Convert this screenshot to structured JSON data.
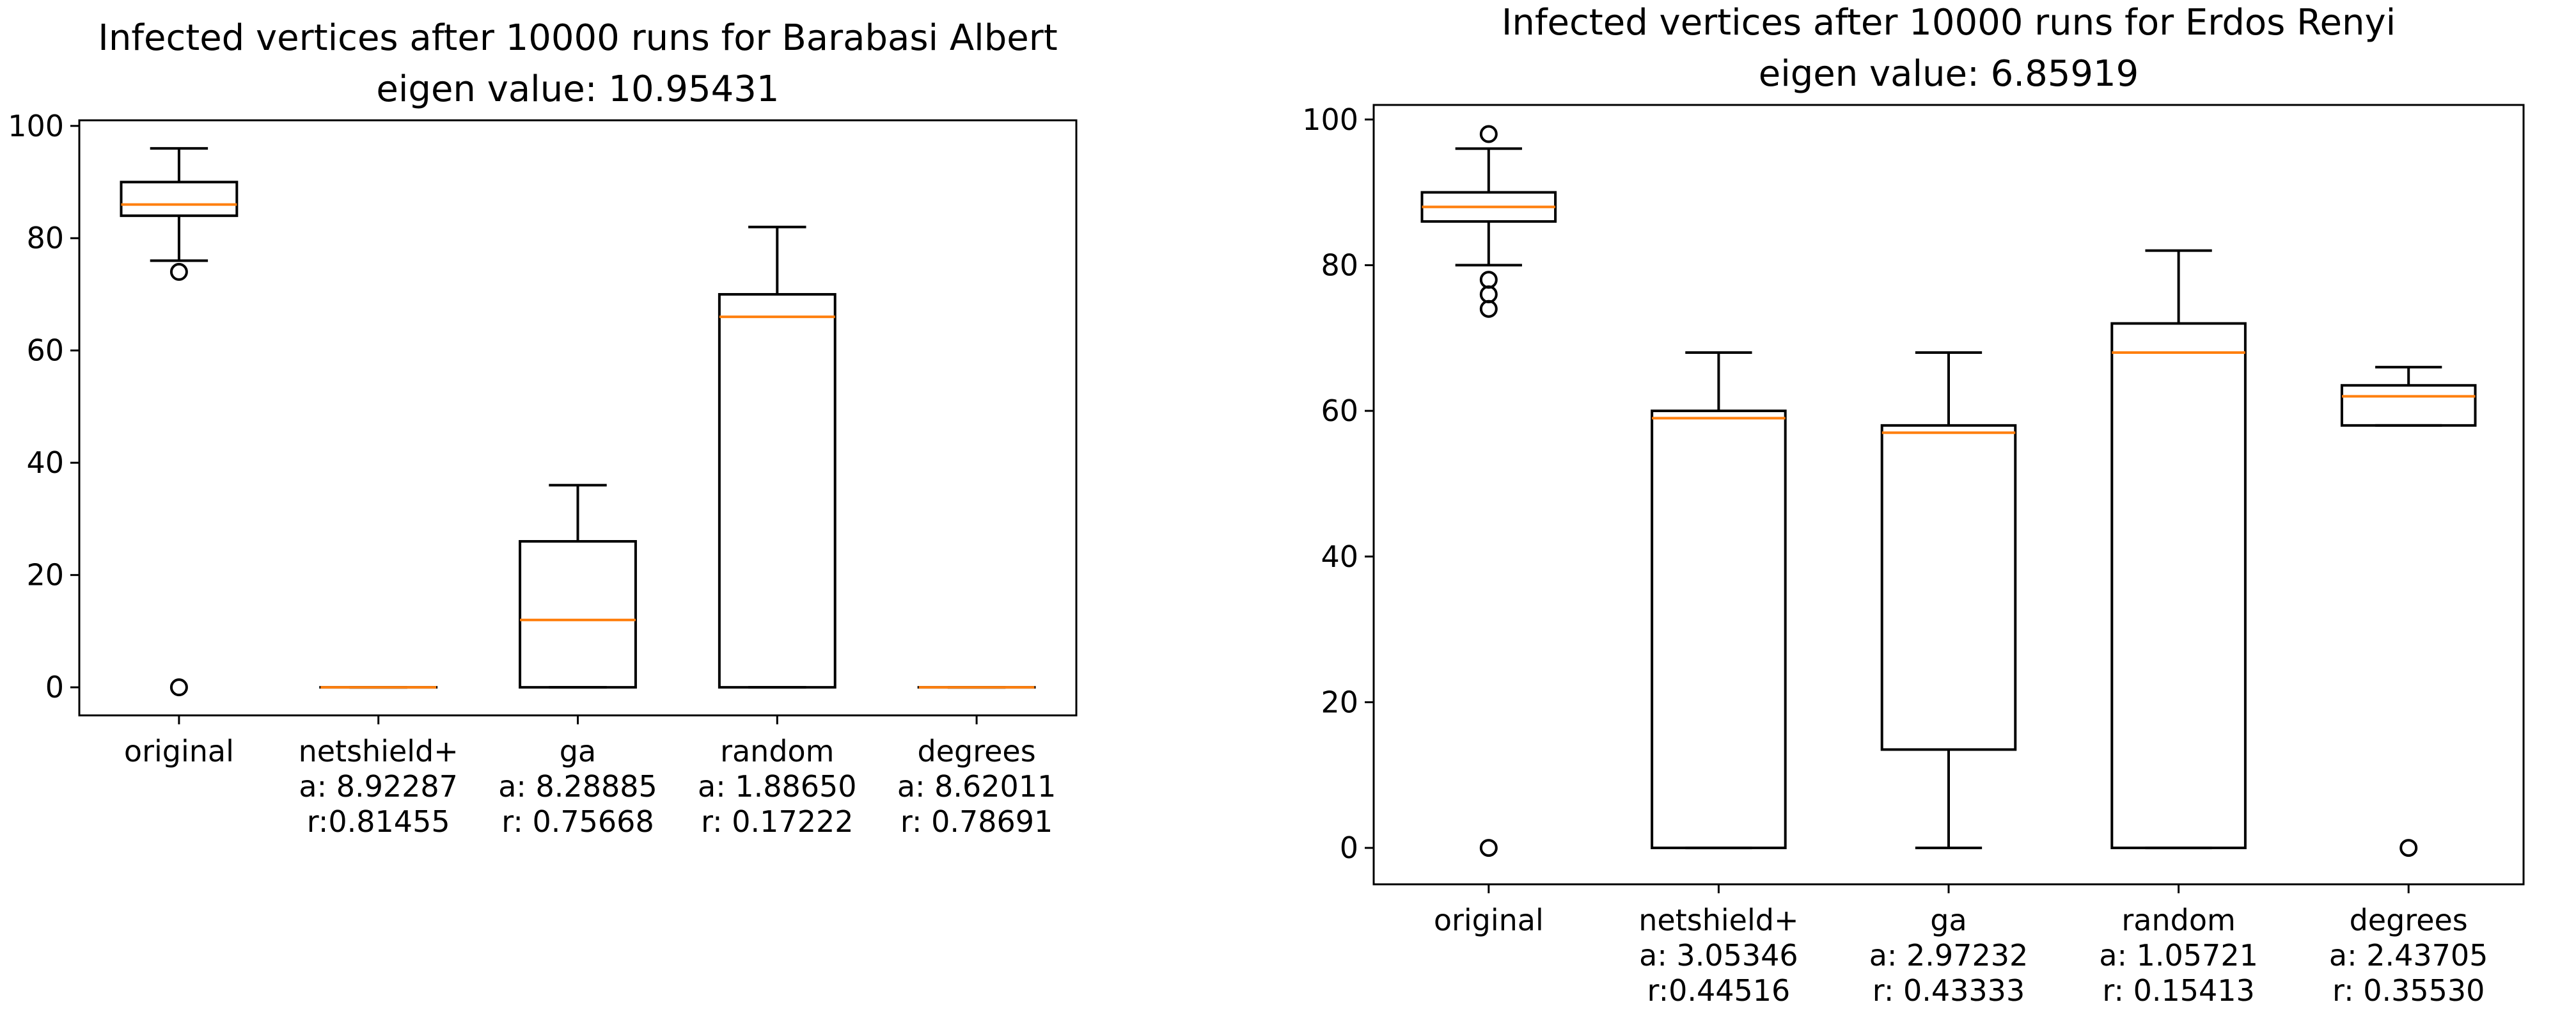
{
  "chart_data": [
    {
      "type": "box",
      "title": "Infected vertices after 10000 runs for Barabasi Albert",
      "subtitle": "eigen value: 10.95431",
      "xlabel": "",
      "ylabel": "",
      "ylim": [
        -5,
        101
      ],
      "yticks": [
        0,
        20,
        40,
        60,
        80,
        100
      ],
      "grid": false,
      "categories": [
        {
          "label": "original",
          "sub1": "",
          "sub2": ""
        },
        {
          "label": "netshield+",
          "sub1": "a: 8.92287",
          "sub2": "r:0.81455"
        },
        {
          "label": "ga",
          "sub1": "a: 8.28885",
          "sub2": "r: 0.75668"
        },
        {
          "label": "random",
          "sub1": "a: 1.88650",
          "sub2": "r: 0.17222"
        },
        {
          "label": "degrees",
          "sub1": "a: 8.62011",
          "sub2": "r: 0.78691"
        }
      ],
      "boxes": [
        {
          "whisker_low": 76,
          "q1": 84,
          "median": 86,
          "q3": 90,
          "whisker_high": 96,
          "outliers": [
            74,
            0
          ]
        },
        {
          "whisker_low": 0,
          "q1": 0,
          "median": 0,
          "q3": 0,
          "whisker_high": 0,
          "outliers": []
        },
        {
          "whisker_low": 0,
          "q1": 0,
          "median": 12,
          "q3": 26,
          "whisker_high": 36,
          "outliers": []
        },
        {
          "whisker_low": 0,
          "q1": 0,
          "median": 66,
          "q3": 70,
          "whisker_high": 82,
          "outliers": []
        },
        {
          "whisker_low": 0,
          "q1": 0,
          "median": 0,
          "q3": 0,
          "whisker_high": 0,
          "outliers": []
        }
      ]
    },
    {
      "type": "box",
      "title": "Infected vertices after 10000 runs for Erdos Renyi",
      "subtitle": "eigen value: 6.85919",
      "xlabel": "",
      "ylabel": "",
      "ylim": [
        -5,
        102
      ],
      "yticks": [
        0,
        20,
        40,
        60,
        80,
        100
      ],
      "grid": false,
      "categories": [
        {
          "label": "original",
          "sub1": "",
          "sub2": ""
        },
        {
          "label": "netshield+",
          "sub1": "a: 3.05346",
          "sub2": "r:0.44516"
        },
        {
          "label": "ga",
          "sub1": "a: 2.97232",
          "sub2": "r: 0.43333"
        },
        {
          "label": "random",
          "sub1": "a: 1.05721",
          "sub2": "r: 0.15413"
        },
        {
          "label": "degrees",
          "sub1": "a: 2.43705",
          "sub2": "r: 0.35530"
        }
      ],
      "boxes": [
        {
          "whisker_low": 80,
          "q1": 86,
          "median": 88,
          "q3": 90,
          "whisker_high": 96,
          "outliers": [
            98,
            78,
            76,
            74,
            0
          ]
        },
        {
          "whisker_low": 0,
          "q1": 0,
          "median": 59,
          "q3": 60,
          "whisker_high": 68,
          "outliers": []
        },
        {
          "whisker_low": 0,
          "q1": 13.5,
          "median": 57,
          "q3": 58,
          "whisker_high": 68,
          "outliers": []
        },
        {
          "whisker_low": 0,
          "q1": 0,
          "median": 68,
          "q3": 72,
          "whisker_high": 82,
          "outliers": []
        },
        {
          "whisker_low": 58,
          "q1": 58,
          "median": 62,
          "q3": 63.5,
          "whisker_high": 66,
          "outliers": [
            0
          ]
        }
      ]
    }
  ],
  "colors": {
    "median": "#ff7f0e",
    "box": "#000000",
    "background": "#ffffff"
  }
}
